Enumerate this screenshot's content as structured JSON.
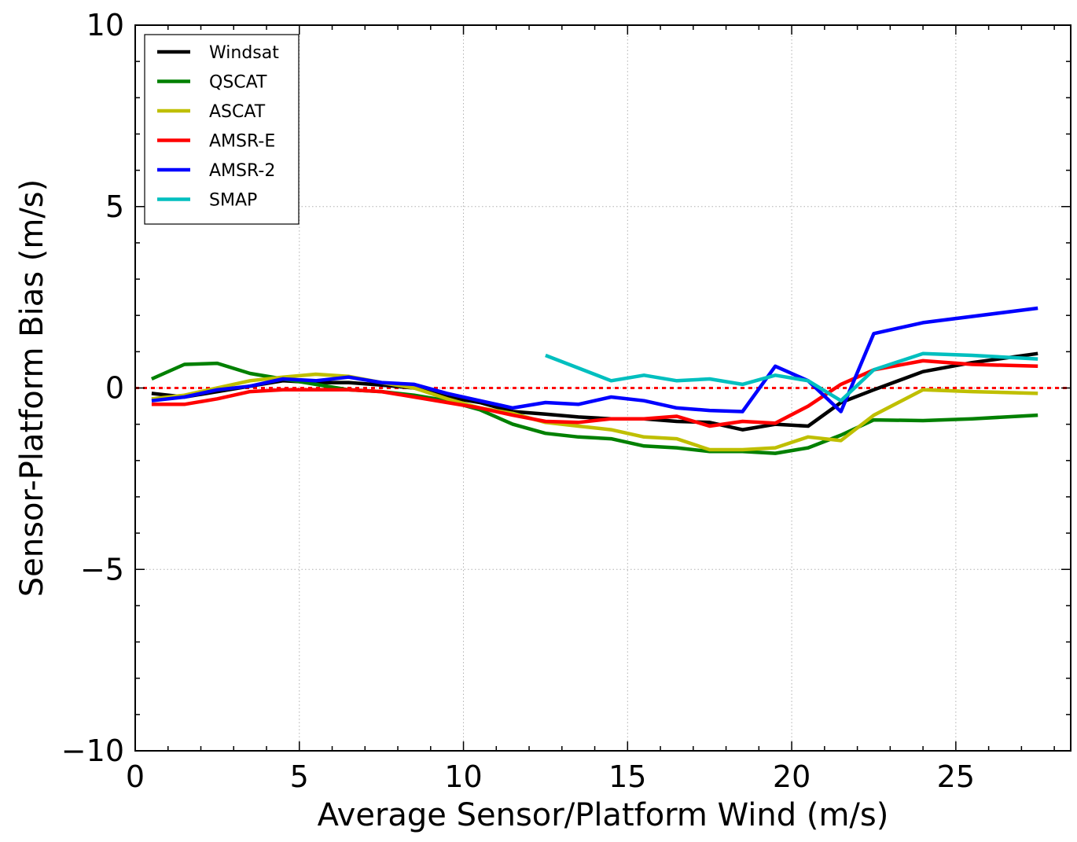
{
  "chart_data": {
    "type": "line",
    "title": "",
    "xlabel": "Average Sensor/Platform Wind (m/s)",
    "ylabel": "Sensor-Platform Bias (m/s)",
    "xlim": [
      0,
      28.5
    ],
    "ylim": [
      -10,
      10
    ],
    "x_ticks": [
      0,
      5,
      10,
      15,
      20,
      25
    ],
    "x_tick_labels": [
      "0",
      "5",
      "10",
      "15",
      "20",
      "25"
    ],
    "y_ticks": [
      -10,
      -5,
      0,
      5,
      10
    ],
    "y_tick_labels": [
      "−10",
      "−5",
      "0",
      "5",
      "10"
    ],
    "grid": true,
    "legend_position": "top-left",
    "reference_line": {
      "y": 0,
      "color": "#ff0000",
      "style": "dotted"
    },
    "series": [
      {
        "name": "Windsat",
        "color": "#000000",
        "points": [
          [
            0.5,
            -0.15
          ],
          [
            1.5,
            -0.25
          ],
          [
            2.5,
            -0.1
          ],
          [
            3.5,
            0.05
          ],
          [
            4.5,
            0.2
          ],
          [
            5.5,
            0.15
          ],
          [
            6.5,
            0.15
          ],
          [
            7.5,
            0.08
          ],
          [
            8.5,
            0.0
          ],
          [
            9.5,
            -0.25
          ],
          [
            10.5,
            -0.4
          ],
          [
            11.5,
            -0.65
          ],
          [
            12.5,
            -0.72
          ],
          [
            13.5,
            -0.8
          ],
          [
            14.5,
            -0.85
          ],
          [
            15.5,
            -0.85
          ],
          [
            16.5,
            -0.92
          ],
          [
            17.5,
            -0.95
          ],
          [
            18.5,
            -1.15
          ],
          [
            19.5,
            -1.0
          ],
          [
            20.5,
            -1.05
          ],
          [
            21.5,
            -0.4
          ],
          [
            22.5,
            -0.05
          ],
          [
            24.0,
            0.45
          ],
          [
            25.5,
            0.7
          ],
          [
            27.5,
            0.95
          ]
        ]
      },
      {
        "name": "QSCAT",
        "color": "#008000",
        "points": [
          [
            0.5,
            0.25
          ],
          [
            1.5,
            0.65
          ],
          [
            2.5,
            0.68
          ],
          [
            3.5,
            0.4
          ],
          [
            4.5,
            0.25
          ],
          [
            5.5,
            0.1
          ],
          [
            6.5,
            -0.05
          ],
          [
            7.5,
            -0.1
          ],
          [
            8.5,
            -0.2
          ],
          [
            9.5,
            -0.35
          ],
          [
            10.5,
            -0.6
          ],
          [
            11.5,
            -1.0
          ],
          [
            12.5,
            -1.25
          ],
          [
            13.5,
            -1.35
          ],
          [
            14.5,
            -1.4
          ],
          [
            15.5,
            -1.6
          ],
          [
            16.5,
            -1.65
          ],
          [
            17.5,
            -1.75
          ],
          [
            18.5,
            -1.75
          ],
          [
            19.5,
            -1.8
          ],
          [
            20.5,
            -1.65
          ],
          [
            21.5,
            -1.3
          ],
          [
            22.5,
            -0.88
          ],
          [
            24.0,
            -0.9
          ],
          [
            25.5,
            -0.85
          ],
          [
            27.5,
            -0.75
          ]
        ]
      },
      {
        "name": "ASCAT",
        "color": "#bfbf00",
        "points": [
          [
            0.5,
            -0.3
          ],
          [
            1.5,
            -0.2
          ],
          [
            2.5,
            0.0
          ],
          [
            3.5,
            0.2
          ],
          [
            4.5,
            0.3
          ],
          [
            5.5,
            0.38
          ],
          [
            6.5,
            0.32
          ],
          [
            7.5,
            0.15
          ],
          [
            8.5,
            0.0
          ],
          [
            9.5,
            -0.3
          ],
          [
            10.5,
            -0.55
          ],
          [
            11.5,
            -0.7
          ],
          [
            12.5,
            -0.95
          ],
          [
            13.5,
            -1.05
          ],
          [
            14.5,
            -1.15
          ],
          [
            15.5,
            -1.35
          ],
          [
            16.5,
            -1.4
          ],
          [
            17.5,
            -1.7
          ],
          [
            18.5,
            -1.7
          ],
          [
            19.5,
            -1.65
          ],
          [
            20.5,
            -1.35
          ],
          [
            21.5,
            -1.45
          ],
          [
            22.5,
            -0.75
          ],
          [
            24.0,
            -0.05
          ],
          [
            25.5,
            -0.1
          ],
          [
            27.5,
            -0.15
          ]
        ]
      },
      {
        "name": "AMSR-E",
        "color": "#ff0000",
        "points": [
          [
            0.5,
            -0.45
          ],
          [
            1.5,
            -0.45
          ],
          [
            2.5,
            -0.3
          ],
          [
            3.5,
            -0.1
          ],
          [
            4.5,
            -0.05
          ],
          [
            5.5,
            -0.05
          ],
          [
            6.5,
            -0.05
          ],
          [
            7.5,
            -0.1
          ],
          [
            8.5,
            -0.25
          ],
          [
            9.5,
            -0.4
          ],
          [
            10.5,
            -0.55
          ],
          [
            11.5,
            -0.75
          ],
          [
            12.5,
            -0.92
          ],
          [
            13.5,
            -0.95
          ],
          [
            14.5,
            -0.85
          ],
          [
            15.5,
            -0.85
          ],
          [
            16.5,
            -0.78
          ],
          [
            17.5,
            -1.05
          ],
          [
            18.5,
            -0.92
          ],
          [
            19.5,
            -0.97
          ],
          [
            20.5,
            -0.5
          ],
          [
            21.5,
            0.1
          ],
          [
            22.5,
            0.5
          ],
          [
            24.0,
            0.75
          ],
          [
            25.5,
            0.65
          ],
          [
            27.5,
            0.6
          ]
        ]
      },
      {
        "name": "AMSR-2",
        "color": "#0000ff",
        "points": [
          [
            0.5,
            -0.35
          ],
          [
            1.5,
            -0.25
          ],
          [
            2.5,
            -0.05
          ],
          [
            3.5,
            0.05
          ],
          [
            4.5,
            0.25
          ],
          [
            5.5,
            0.2
          ],
          [
            6.5,
            0.3
          ],
          [
            7.5,
            0.15
          ],
          [
            8.5,
            0.1
          ],
          [
            9.5,
            -0.15
          ],
          [
            10.5,
            -0.35
          ],
          [
            11.5,
            -0.55
          ],
          [
            12.5,
            -0.4
          ],
          [
            13.5,
            -0.45
          ],
          [
            14.5,
            -0.25
          ],
          [
            15.5,
            -0.35
          ],
          [
            16.5,
            -0.55
          ],
          [
            17.5,
            -0.62
          ],
          [
            18.5,
            -0.65
          ],
          [
            19.5,
            0.6
          ],
          [
            20.5,
            0.2
          ],
          [
            21.5,
            -0.65
          ],
          [
            22.5,
            1.5
          ],
          [
            24.0,
            1.8
          ],
          [
            27.5,
            2.2
          ]
        ]
      },
      {
        "name": "SMAP",
        "color": "#00bfbf",
        "points": [
          [
            12.5,
            0.9
          ],
          [
            13.5,
            0.55
          ],
          [
            14.5,
            0.2
          ],
          [
            15.5,
            0.35
          ],
          [
            16.5,
            0.2
          ],
          [
            17.5,
            0.25
          ],
          [
            18.5,
            0.1
          ],
          [
            19.5,
            0.35
          ],
          [
            20.5,
            0.2
          ],
          [
            21.5,
            -0.35
          ],
          [
            22.5,
            0.5
          ],
          [
            24.0,
            0.95
          ],
          [
            25.5,
            0.9
          ],
          [
            27.5,
            0.8
          ]
        ]
      }
    ]
  }
}
